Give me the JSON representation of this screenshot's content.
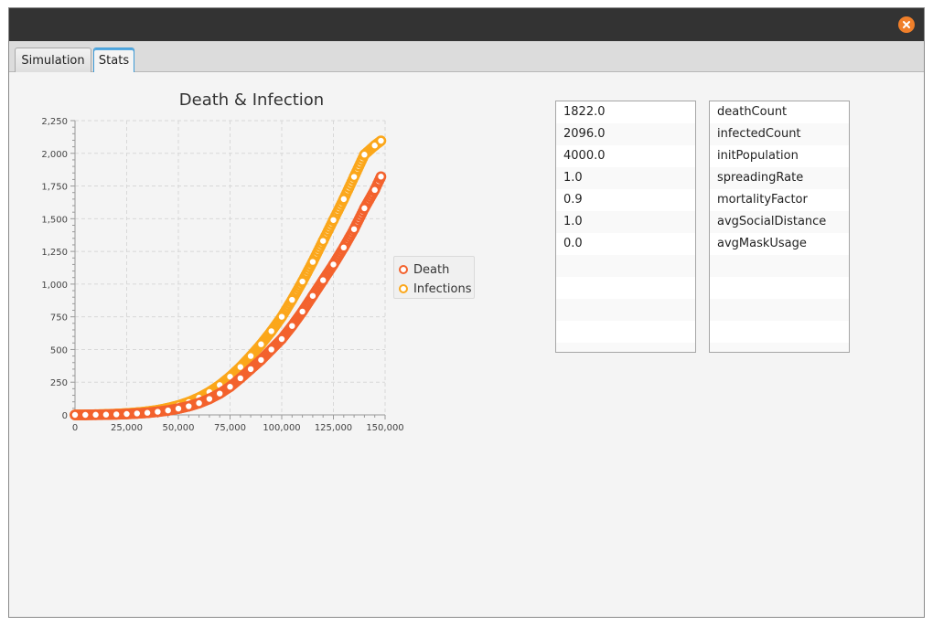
{
  "window": {
    "close_icon": "close-icon"
  },
  "tabs": [
    {
      "label": "Simulation",
      "active": false
    },
    {
      "label": "Stats",
      "active": true
    }
  ],
  "values_list": [
    "1822.0",
    "2096.0",
    "4000.0",
    "1.0",
    "0.9",
    "1.0",
    "0.0"
  ],
  "names_list": [
    "deathCount",
    "infectedCount",
    "initPopulation",
    "spreadingRate",
    "mortalityFactor",
    "avgSocialDistance",
    "avgMaskUsage"
  ],
  "chart_data": {
    "type": "scatter",
    "title": "Death & Infection",
    "xlabel": "",
    "ylabel": "",
    "xlim": [
      0,
      150000
    ],
    "ylim": [
      0,
      2250
    ],
    "x_ticks": [
      "0",
      "25,000",
      "50,000",
      "75,000",
      "100,000",
      "125,000",
      "150,000"
    ],
    "y_ticks": [
      "0",
      "250",
      "500",
      "750",
      "1,000",
      "1,250",
      "1,500",
      "1,750",
      "2,000",
      "2,250"
    ],
    "grid": true,
    "legend_position": "right",
    "series": [
      {
        "name": "Death",
        "color": "#f3622d",
        "points": [
          [
            0,
            0
          ],
          [
            5000,
            0
          ],
          [
            10000,
            1
          ],
          [
            15000,
            2
          ],
          [
            20000,
            4
          ],
          [
            25000,
            7
          ],
          [
            30000,
            11
          ],
          [
            35000,
            16
          ],
          [
            40000,
            24
          ],
          [
            45000,
            34
          ],
          [
            50000,
            48
          ],
          [
            55000,
            66
          ],
          [
            60000,
            90
          ],
          [
            65000,
            122
          ],
          [
            70000,
            163
          ],
          [
            75000,
            215
          ],
          [
            80000,
            280
          ],
          [
            85000,
            350
          ],
          [
            90000,
            420
          ],
          [
            95000,
            500
          ],
          [
            100000,
            580
          ],
          [
            105000,
            680
          ],
          [
            110000,
            790
          ],
          [
            115000,
            910
          ],
          [
            120000,
            1030
          ],
          [
            125000,
            1150
          ],
          [
            130000,
            1280
          ],
          [
            135000,
            1420
          ],
          [
            140000,
            1580
          ],
          [
            145000,
            1720
          ],
          [
            148000,
            1822
          ]
        ]
      },
      {
        "name": "Infections",
        "color": "#fba71b",
        "points": [
          [
            0,
            0
          ],
          [
            5000,
            1
          ],
          [
            10000,
            2
          ],
          [
            15000,
            4
          ],
          [
            20000,
            7
          ],
          [
            25000,
            11
          ],
          [
            30000,
            17
          ],
          [
            35000,
            25
          ],
          [
            40000,
            36
          ],
          [
            45000,
            52
          ],
          [
            50000,
            72
          ],
          [
            55000,
            98
          ],
          [
            60000,
            132
          ],
          [
            65000,
            175
          ],
          [
            70000,
            228
          ],
          [
            75000,
            292
          ],
          [
            80000,
            366
          ],
          [
            85000,
            450
          ],
          [
            90000,
            540
          ],
          [
            95000,
            640
          ],
          [
            100000,
            750
          ],
          [
            105000,
            880
          ],
          [
            110000,
            1020
          ],
          [
            115000,
            1170
          ],
          [
            120000,
            1330
          ],
          [
            125000,
            1490
          ],
          [
            130000,
            1650
          ],
          [
            135000,
            1820
          ],
          [
            140000,
            1990
          ],
          [
            145000,
            2060
          ],
          [
            148000,
            2096
          ]
        ]
      }
    ]
  }
}
